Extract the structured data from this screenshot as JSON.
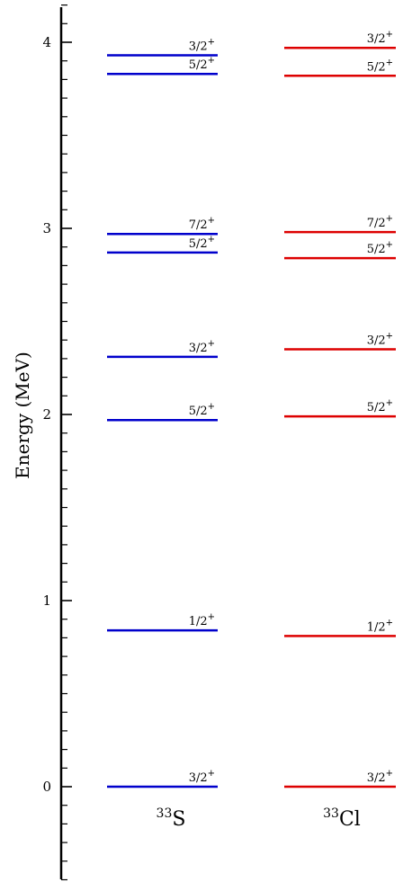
{
  "chart_data": {
    "type": "level-scheme",
    "ylabel": "Energy (MeV)",
    "ylim": [
      -0.55,
      4.2
    ],
    "y_ticks": [
      0,
      1,
      2,
      3,
      4
    ],
    "y_tick_labels": [
      "0",
      "1",
      "2",
      "3",
      "4"
    ],
    "minor_tick_step": 0.1,
    "series": [
      {
        "name": "33S",
        "label_mass": "33",
        "label_symbol": "S",
        "color": "#0000cc",
        "levels": [
          {
            "energy": 0.0,
            "spin": "3/2",
            "parity": "+"
          },
          {
            "energy": 0.84,
            "spin": "1/2",
            "parity": "+"
          },
          {
            "energy": 1.97,
            "spin": "5/2",
            "parity": "+"
          },
          {
            "energy": 2.31,
            "spin": "3/2",
            "parity": "+"
          },
          {
            "energy": 2.87,
            "spin": "5/2",
            "parity": "+"
          },
          {
            "energy": 2.97,
            "spin": "7/2",
            "parity": "+"
          },
          {
            "energy": 3.83,
            "spin": "5/2",
            "parity": "+"
          },
          {
            "energy": 3.93,
            "spin": "3/2",
            "parity": "+"
          }
        ]
      },
      {
        "name": "33Cl",
        "label_mass": "33",
        "label_symbol": "Cl",
        "color": "#dd0000",
        "levels": [
          {
            "energy": 0.0,
            "spin": "3/2",
            "parity": "+"
          },
          {
            "energy": 0.81,
            "spin": "1/2",
            "parity": "+"
          },
          {
            "energy": 1.99,
            "spin": "5/2",
            "parity": "+"
          },
          {
            "energy": 2.35,
            "spin": "3/2",
            "parity": "+"
          },
          {
            "energy": 2.84,
            "spin": "5/2",
            "parity": "+"
          },
          {
            "energy": 2.98,
            "spin": "7/2",
            "parity": "+"
          },
          {
            "energy": 3.82,
            "spin": "5/2",
            "parity": "+"
          },
          {
            "energy": 3.97,
            "spin": "3/2",
            "parity": "+"
          }
        ]
      }
    ]
  }
}
